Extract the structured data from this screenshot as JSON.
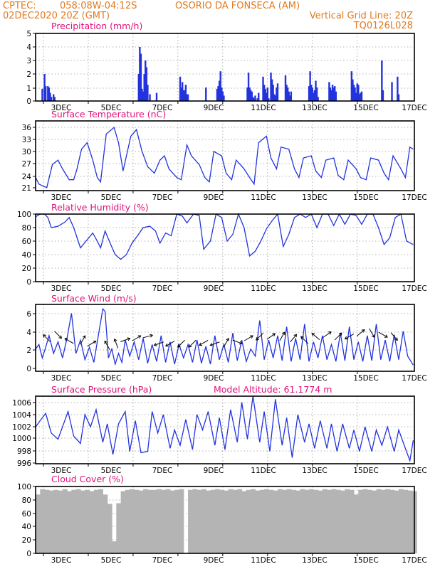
{
  "header": {
    "source": "CPTEC:",
    "coords": "058:08W-04:12S",
    "station": "OSORIO DA FONSECA (AM)",
    "run": "02DEC2020 20Z (GMT)",
    "grid_note": "Vertical Grid Line: 20Z",
    "model_code": "TQ0126L028"
  },
  "colors": {
    "header": "#e07a1f",
    "panel_title": "#e0127a",
    "line": "#2233dd",
    "bar": "#2233dd",
    "cloud": "#b4b4b4"
  },
  "x_ticks": [
    "3DEC",
    "5DEC",
    "7DEC",
    "9DEC",
    "11DEC",
    "13DEC",
    "15DEC",
    "17DEC"
  ],
  "chart_data": [
    {
      "type": "bar",
      "title": "Precipitation (mm/h)",
      "ylim": [
        0,
        5
      ],
      "yticks": [
        "0",
        "1",
        "2",
        "3",
        "4",
        "5"
      ],
      "x_unit": "days since 02DEC2020 20Z",
      "x": [
        0.3,
        0.4,
        0.45,
        0.55,
        0.6,
        0.65,
        0.7,
        0.8,
        0.85,
        4.6,
        4.65,
        4.7,
        4.75,
        4.8,
        4.85,
        4.9,
        4.95,
        5.0,
        5.1,
        5.4,
        6.45,
        6.5,
        6.55,
        6.6,
        6.65,
        6.7,
        6.75,
        6.8,
        7.6,
        8.1,
        8.15,
        8.2,
        8.25,
        8.3,
        8.35,
        8.4,
        9.45,
        9.5,
        9.55,
        9.6,
        9.65,
        9.7,
        9.75,
        9.8,
        9.9,
        9.95,
        10.15,
        10.2,
        10.25,
        10.3,
        10.35,
        10.4,
        10.5,
        10.55,
        10.6,
        10.65,
        10.7,
        10.75,
        10.8,
        11.15,
        11.2,
        11.25,
        11.3,
        11.35,
        11.4,
        12.2,
        12.25,
        12.3,
        12.35,
        12.4,
        12.45,
        12.5,
        12.55,
        12.6,
        13.1,
        13.15,
        13.2,
        13.25,
        13.3,
        13.35,
        13.4,
        14.1,
        14.15,
        14.2,
        14.25,
        14.3,
        14.35,
        14.4,
        14.45,
        14.5,
        14.55,
        15.45,
        15.5,
        15.9,
        16.15,
        16.2
      ],
      "values": [
        0.9,
        2.0,
        1.1,
        1.1,
        1.0,
        0.6,
        0.3,
        0.5,
        0.3,
        2.0,
        4.0,
        3.5,
        0.9,
        0.7,
        2.0,
        3.0,
        2.5,
        1.2,
        0.5,
        0.6,
        1.8,
        1.0,
        1.4,
        0.8,
        0.8,
        1.2,
        0.5,
        0.5,
        1.0,
        0.9,
        1.1,
        1.5,
        2.2,
        1.0,
        0.7,
        0.4,
        1.0,
        2.1,
        1.0,
        0.8,
        0.7,
        0.3,
        0.2,
        0.4,
        0.2,
        0.6,
        1.8,
        1.2,
        0.9,
        0.6,
        1.0,
        0.2,
        2.1,
        1.6,
        1.2,
        0.5,
        0.4,
        1.0,
        1.3,
        1.9,
        1.2,
        1.0,
        0.7,
        0.4,
        0.7,
        1.1,
        2.2,
        1.2,
        1.0,
        0.6,
        0.8,
        1.5,
        1.0,
        0.3,
        1.4,
        1.0,
        0.8,
        1.2,
        1.0,
        1.1,
        0.7,
        2.2,
        1.6,
        1.2,
        1.0,
        0.6,
        1.3,
        1.2,
        0.5,
        0.6,
        0.7,
        3.0,
        0.8,
        1.4,
        1.8,
        0.5
      ]
    },
    {
      "type": "line",
      "title": "Surface Temperature (nC)",
      "ylim": [
        21,
        37
      ],
      "yticks": [
        "21",
        "24",
        "27",
        "30",
        "33",
        "36"
      ],
      "x_unit": "days since 02DEC2020 20Z",
      "x": [
        0,
        0.15,
        0.35,
        0.5,
        0.75,
        1.0,
        1.2,
        1.5,
        1.7,
        1.85,
        2.05,
        2.3,
        2.55,
        2.75,
        2.9,
        3.15,
        3.5,
        3.7,
        3.9,
        4.25,
        4.5,
        4.75,
        5.0,
        5.3,
        5.55,
        5.75,
        5.95,
        6.3,
        6.5,
        6.75,
        6.95,
        7.3,
        7.55,
        7.75,
        7.95,
        8.3,
        8.5,
        8.75,
        8.95,
        9.3,
        9.55,
        9.75,
        9.95,
        10.3,
        10.5,
        10.75,
        10.95,
        11.3,
        11.55,
        11.75,
        11.95,
        12.3,
        12.5,
        12.75,
        12.95,
        13.3,
        13.5,
        13.75,
        13.95,
        14.3,
        14.5,
        14.75,
        14.95,
        15.3,
        15.55,
        15.75,
        15.95,
        16.3,
        16.5,
        16.7,
        16.85
      ],
      "values": [
        24.0,
        22.5,
        22.0,
        21.7,
        27.0,
        28.0,
        26.0,
        23.5,
        23.5,
        26.0,
        30.5,
        32.0,
        28.0,
        24.0,
        23.0,
        34.0,
        35.5,
        32.0,
        25.5,
        33.5,
        35.0,
        30.0,
        26.5,
        25.0,
        28.0,
        29.0,
        26.0,
        24.0,
        23.5,
        31.5,
        29.0,
        27.0,
        24.0,
        23.0,
        30.0,
        29.0,
        25.0,
        23.5,
        28.0,
        26.0,
        24.0,
        22.5,
        32.0,
        33.5,
        28.5,
        26.0,
        31.0,
        30.5,
        26.0,
        24.0,
        28.5,
        29.0,
        25.5,
        24.0,
        28.0,
        28.5,
        24.5,
        23.5,
        28.0,
        26.0,
        24.0,
        23.5,
        28.5,
        28.0,
        25.0,
        23.5,
        29.0,
        26.0,
        24.0,
        31.0,
        30.5
      ]
    },
    {
      "type": "line",
      "title": "Relative Humidity (%)",
      "ylim": [
        0,
        100
      ],
      "yticks": [
        "0",
        "20",
        "40",
        "60",
        "80",
        "100"
      ],
      "x_unit": "days since 02DEC2020 20Z",
      "x": [
        0,
        0.2,
        0.4,
        0.55,
        0.7,
        1.0,
        1.3,
        1.5,
        1.7,
        2.0,
        2.25,
        2.55,
        2.75,
        2.9,
        3.1,
        3.35,
        3.55,
        3.8,
        4.05,
        4.3,
        4.55,
        4.8,
        5.1,
        5.35,
        5.55,
        5.8,
        6.05,
        6.3,
        6.55,
        6.75,
        7.05,
        7.3,
        7.5,
        7.8,
        8.05,
        8.3,
        8.55,
        8.8,
        9.05,
        9.3,
        9.55,
        9.8,
        10.05,
        10.3,
        10.55,
        10.8,
        11.05,
        11.3,
        11.55,
        11.8,
        12.05,
        12.3,
        12.55,
        12.8,
        13.05,
        13.3,
        13.55,
        13.8,
        14.05,
        14.3,
        14.55,
        14.8,
        15.05,
        15.3,
        15.55,
        15.8,
        16.05,
        16.3,
        16.55,
        16.85
      ],
      "values": [
        96,
        100,
        100,
        95,
        80,
        82,
        88,
        95,
        80,
        50,
        60,
        72,
        60,
        50,
        75,
        55,
        40,
        33,
        40,
        57,
        68,
        80,
        82,
        75,
        57,
        72,
        68,
        100,
        97,
        87,
        100,
        98,
        48,
        60,
        100,
        95,
        60,
        70,
        100,
        80,
        38,
        45,
        60,
        78,
        90,
        100,
        52,
        70,
        95,
        100,
        95,
        100,
        80,
        100,
        100,
        83,
        100,
        85,
        100,
        98,
        85,
        100,
        100,
        80,
        55,
        65,
        95,
        100,
        60,
        55
      ]
    },
    {
      "type": "line",
      "title": "Surface Wind (m/s)",
      "ylim": [
        -0.5,
        7
      ],
      "yticks": [
        "0",
        "2",
        "4",
        "6"
      ],
      "x_unit": "days since 02DEC2020 20Z",
      "x": [
        0,
        0.15,
        0.3,
        0.45,
        0.6,
        0.8,
        1.0,
        1.2,
        1.4,
        1.6,
        1.8,
        2.0,
        2.2,
        2.4,
        2.6,
        2.8,
        3.0,
        3.1,
        3.25,
        3.4,
        3.55,
        3.7,
        3.85,
        4.0,
        4.2,
        4.4,
        4.6,
        4.8,
        5.0,
        5.2,
        5.4,
        5.6,
        5.8,
        6.0,
        6.2,
        6.4,
        6.6,
        6.8,
        7.0,
        7.2,
        7.4,
        7.6,
        7.8,
        8.0,
        8.2,
        8.4,
        8.6,
        8.8,
        9.0,
        9.2,
        9.4,
        9.6,
        9.8,
        10.0,
        10.2,
        10.4,
        10.6,
        10.8,
        11.0,
        11.2,
        11.4,
        11.6,
        11.8,
        12.0,
        12.2,
        12.4,
        12.6,
        12.8,
        13.0,
        13.2,
        13.4,
        13.6,
        13.8,
        14.0,
        14.2,
        14.4,
        14.6,
        14.8,
        15.0,
        15.2,
        15.4,
        15.6,
        15.8,
        16.0,
        16.2,
        16.4,
        16.6,
        16.85
      ],
      "values": [
        2.0,
        2.5,
        1.0,
        2.2,
        3.5,
        1.5,
        2.8,
        1.0,
        3.2,
        6.0,
        1.5,
        3.0,
        0.8,
        2.2,
        0.5,
        3.5,
        6.5,
        6.2,
        1.0,
        2.0,
        0.3,
        1.5,
        0.5,
        3.0,
        1.2,
        2.8,
        0.8,
        3.2,
        0.4,
        2.5,
        0.6,
        3.5,
        0.5,
        2.8,
        0.3,
        2.5,
        1.0,
        2.5,
        0.5,
        3.0,
        0.4,
        2.3,
        0.3,
        3.5,
        0.8,
        2.5,
        0.5,
        3.8,
        0.7,
        3.0,
        0.6,
        2.0,
        1.2,
        5.2,
        0.8,
        3.0,
        1.0,
        3.5,
        0.7,
        4.5,
        0.6,
        3.2,
        0.8,
        4.8,
        0.6,
        2.8,
        1.0,
        3.5,
        0.8,
        2.5,
        0.6,
        3.8,
        0.7,
        4.5,
        0.8,
        2.8,
        0.6,
        3.5,
        0.7,
        4.8,
        0.8,
        3.0,
        0.6,
        3.6,
        0.8,
        4.0,
        1.2,
        0.2
      ],
      "arrows": {
        "x": [
          0.5,
          1.0,
          1.5,
          2.1,
          2.5,
          3.2,
          3.6,
          4.0,
          4.5,
          5.0,
          5.5,
          6.0,
          6.5,
          7.0,
          7.5,
          8.0,
          8.5,
          9.0,
          9.5,
          10.0,
          10.5,
          11.0,
          11.5,
          12.0,
          12.5,
          13.0,
          13.5,
          14.0,
          14.5,
          15.0,
          15.5,
          16.0
        ],
        "y": [
          3.2,
          3.6,
          2.9,
          3.0,
          2.6,
          2.4,
          2.6,
          3.0,
          3.2,
          3.4,
          2.6,
          2.6,
          2.6,
          2.6,
          2.7,
          2.6,
          2.7,
          2.8,
          3.2,
          3.4,
          3.4,
          3.4,
          3.2,
          3.0,
          3.4,
          3.6,
          3.4,
          3.4,
          3.8,
          3.8,
          3.6,
          3.4
        ],
        "dir_deg": [
          135,
          315,
          150,
          60,
          30,
          120,
          110,
          20,
          30,
          15,
          200,
          210,
          225,
          225,
          210,
          200,
          60,
          340,
          30,
          225,
          35,
          60,
          50,
          135,
          140,
          35,
          45,
          210,
          40,
          300,
          330,
          310
        ]
      }
    },
    {
      "type": "line",
      "title": "Surface Pressure (hPa)",
      "annotation": "Model Altitude: 61.1774 m",
      "ylim": [
        996,
        1007
      ],
      "yticks": [
        "996",
        "998",
        "1000",
        "1002",
        "1004",
        "1006"
      ],
      "x_unit": "days since 02DEC2020 20Z",
      "x": [
        0,
        0.2,
        0.45,
        0.7,
        1.0,
        1.2,
        1.45,
        1.7,
        2.0,
        2.2,
        2.45,
        2.7,
        3.0,
        3.2,
        3.45,
        3.7,
        4.0,
        4.2,
        4.45,
        4.7,
        5.0,
        5.2,
        5.45,
        5.7,
        6.0,
        6.2,
        6.45,
        6.7,
        7.0,
        7.2,
        7.45,
        7.7,
        8.0,
        8.2,
        8.45,
        8.7,
        9.0,
        9.2,
        9.45,
        9.7,
        10.0,
        10.2,
        10.45,
        10.7,
        11.0,
        11.2,
        11.45,
        11.7,
        12.0,
        12.2,
        12.45,
        12.7,
        13.0,
        13.2,
        13.45,
        13.7,
        14.0,
        14.2,
        14.45,
        14.7,
        15.0,
        15.2,
        15.45,
        15.7,
        16.0,
        16.2,
        16.45,
        16.7,
        16.85
      ],
      "values": [
        1002.0,
        1003.0,
        1004.2,
        1001.0,
        1000.0,
        1002.0,
        1004.5,
        1000.5,
        999.3,
        1004.0,
        1002.0,
        1004.8,
        999.5,
        1002.5,
        997.5,
        1002.5,
        1004.5,
        998.0,
        1003.0,
        997.8,
        998.0,
        1004.5,
        1001.0,
        1004.0,
        998.5,
        1001.5,
        999.0,
        1003.2,
        998.3,
        1004.0,
        1001.5,
        1004.5,
        999.0,
        1003.5,
        998.3,
        1004.8,
        999.5,
        1006.0,
        1000.0,
        1007.0,
        999.5,
        1004.5,
        998.0,
        1006.5,
        999.0,
        1003.5,
        997.0,
        1004.0,
        999.5,
        1002.5,
        998.5,
        1003.0,
        998.5,
        1002.5,
        998.0,
        1002.5,
        998.5,
        1001.5,
        998.0,
        1002.0,
        998.0,
        1001.5,
        999.0,
        1002.0,
        998.0,
        1001.5,
        999.0,
        996.5,
        999.8
      ]
    },
    {
      "type": "bar",
      "title": "Cloud Cover (%)",
      "ylim": [
        0,
        100
      ],
      "yticks": [
        "0",
        "20",
        "40",
        "60",
        "80",
        "100"
      ],
      "x_unit": "days since 02DEC2020 20Z",
      "x": [
        0.0,
        0.2,
        0.4,
        0.6,
        0.8,
        1.0,
        1.2,
        1.4,
        1.6,
        1.8,
        2.0,
        2.2,
        2.4,
        2.6,
        2.8,
        3.0,
        3.2,
        3.4,
        3.6,
        3.8,
        4.0,
        4.2,
        4.4,
        4.6,
        4.8,
        5.0,
        5.2,
        5.4,
        5.6,
        5.8,
        6.0,
        6.2,
        6.4,
        6.6,
        6.8,
        7.0,
        7.2,
        7.4,
        7.6,
        7.8,
        8.0,
        8.2,
        8.4,
        8.6,
        8.8,
        9.0,
        9.2,
        9.4,
        9.6,
        9.8,
        10.0,
        10.2,
        10.4,
        10.6,
        10.8,
        11.0,
        11.2,
        11.4,
        11.6,
        11.8,
        12.0,
        12.2,
        12.4,
        12.6,
        12.8,
        13.0,
        13.2,
        13.4,
        13.6,
        13.8,
        14.0,
        14.2,
        14.4,
        14.6,
        14.8,
        15.0,
        15.2,
        15.4,
        15.6,
        15.8,
        16.0,
        16.2,
        16.4,
        16.6,
        16.8
      ],
      "values": [
        88,
        96,
        95,
        94,
        95,
        94,
        96,
        93,
        95,
        96,
        94,
        95,
        93,
        95,
        96,
        88,
        74,
        18,
        75,
        93,
        95,
        96,
        95,
        94,
        96,
        95,
        95,
        96,
        95,
        96,
        94,
        95,
        96,
        0,
        95,
        96,
        95,
        96,
        94,
        95,
        96,
        95,
        94,
        96,
        95,
        96,
        93,
        95,
        96,
        94,
        95,
        96,
        95,
        94,
        96,
        95,
        96,
        95,
        94,
        96,
        95,
        96,
        95,
        94,
        96,
        95,
        96,
        95,
        94,
        96,
        95,
        88,
        95,
        96,
        95,
        94,
        96,
        95,
        96,
        95,
        94,
        96,
        95,
        94,
        93
      ]
    }
  ]
}
